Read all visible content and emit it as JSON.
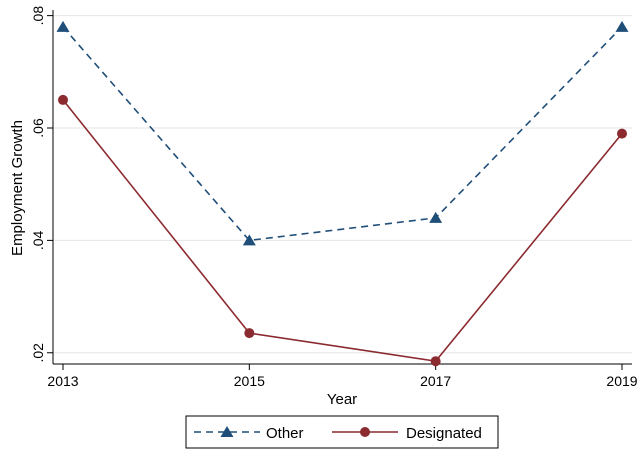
{
  "chart_data": {
    "type": "line",
    "x": [
      2013,
      2015,
      2017,
      2019
    ],
    "xlabel": "Year",
    "ylabel": "Employment Growth",
    "xlim": [
      2013,
      2019
    ],
    "ylim": [
      0.018,
      0.081
    ],
    "xticks": [
      "2013",
      "2015",
      "2017",
      "2019"
    ],
    "yticks": [
      {
        "value": 0.02,
        "label": ".02"
      },
      {
        "value": 0.04,
        "label": ".04"
      },
      {
        "value": 0.06,
        "label": ".06"
      },
      {
        "value": 0.08,
        "label": ".08"
      }
    ],
    "grid": true,
    "legend_position": "bottom",
    "series": [
      {
        "name": "Other",
        "values": [
          0.078,
          0.04,
          0.044,
          0.078
        ],
        "color": "#1f4e79",
        "marker": "triangle",
        "line": "dashed"
      },
      {
        "name": "Designated",
        "values": [
          0.065,
          0.0235,
          0.0185,
          0.059
        ],
        "color": "#8b2a2f",
        "marker": "circle",
        "line": "solid"
      }
    ]
  }
}
